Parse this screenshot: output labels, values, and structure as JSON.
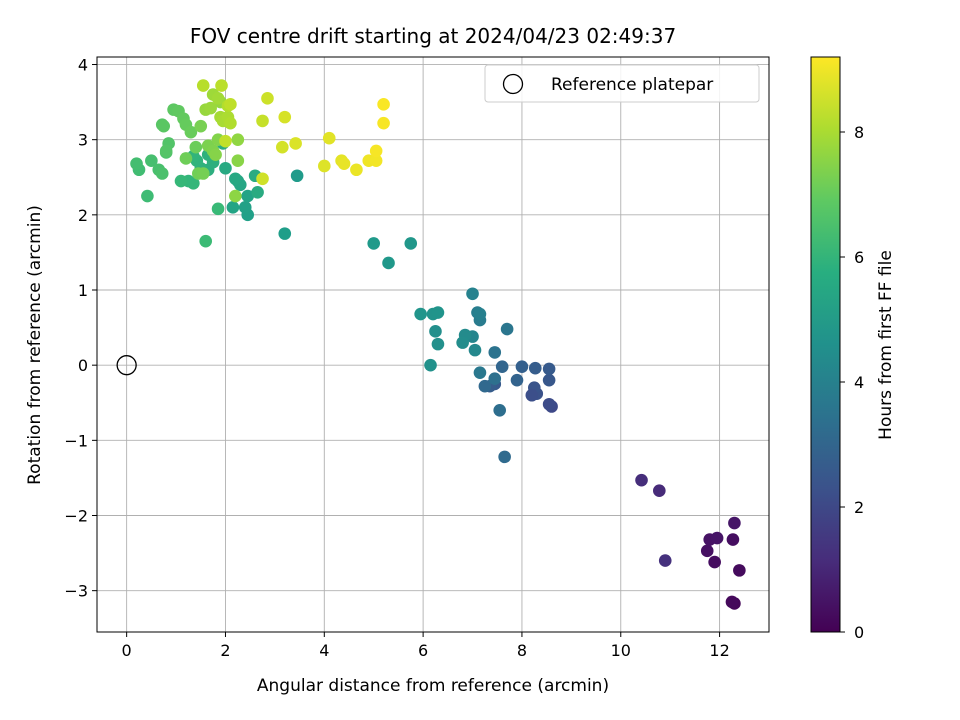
{
  "chart_data": {
    "type": "scatter",
    "title": "FOV centre drift starting at 2024/04/23 02:49:37",
    "xlabel": "Angular distance from reference (arcmin)",
    "ylabel": "Rotation from reference (arcmin)",
    "xlim": [
      -0.6,
      13.0
    ],
    "ylim": [
      -3.55,
      4.1
    ],
    "xticks": [
      0,
      2,
      4,
      6,
      8,
      10,
      12
    ],
    "yticks": [
      -3,
      -2,
      -1,
      0,
      1,
      2,
      3,
      4
    ],
    "xtick_labels": [
      "0",
      "2",
      "4",
      "6",
      "8",
      "10",
      "12"
    ],
    "ytick_labels": [
      "−3",
      "−2",
      "−1",
      "0",
      "1",
      "2",
      "3",
      "4"
    ],
    "grid": true,
    "colormap": "viridis",
    "colorbar": {
      "label": "Hours from first FF file",
      "range": [
        0,
        9.2
      ],
      "ticks": [
        0,
        2,
        4,
        6,
        8
      ],
      "tick_labels": [
        "0",
        "2",
        "4",
        "6",
        "8"
      ]
    },
    "reference": {
      "x": 0,
      "y": 0,
      "label": "Reference platepar"
    },
    "legend": {
      "location": "top-right",
      "entries": [
        "Reference platepar"
      ]
    },
    "points": [
      [
        12.3,
        -3.17,
        0.15
      ],
      [
        12.25,
        -3.15,
        0.2
      ],
      [
        12.4,
        -2.73,
        0.25
      ],
      [
        11.9,
        -2.62,
        0.3
      ],
      [
        11.75,
        -2.47,
        0.4
      ],
      [
        11.8,
        -2.32,
        0.45
      ],
      [
        11.95,
        -2.3,
        0.5
      ],
      [
        12.27,
        -2.32,
        0.35
      ],
      [
        12.3,
        -2.1,
        0.55
      ],
      [
        10.9,
        -2.6,
        1.3
      ],
      [
        10.78,
        -1.67,
        1.1
      ],
      [
        10.42,
        -1.53,
        1.2
      ],
      [
        8.6,
        -0.55,
        2.0
      ],
      [
        8.55,
        -0.52,
        2.1
      ],
      [
        8.3,
        -0.38,
        2.3
      ],
      [
        8.25,
        -0.3,
        2.4
      ],
      [
        8.2,
        -0.4,
        2.2
      ],
      [
        8.55,
        -0.2,
        2.5
      ],
      [
        8.55,
        -0.05,
        2.6
      ],
      [
        8.27,
        -0.04,
        2.7
      ],
      [
        8.0,
        -0.02,
        2.8
      ],
      [
        7.9,
        -0.2,
        2.9
      ],
      [
        7.6,
        -0.02,
        3.0
      ],
      [
        7.65,
        -1.22,
        3.2
      ],
      [
        7.55,
        -0.6,
        3.3
      ],
      [
        7.45,
        -0.25,
        2.6
      ],
      [
        7.35,
        -0.28,
        2.7
      ],
      [
        7.25,
        -0.28,
        3.1
      ],
      [
        7.45,
        -0.18,
        3.4
      ],
      [
        7.45,
        0.17,
        3.5
      ],
      [
        7.7,
        0.48,
        3.6
      ],
      [
        7.15,
        -0.1,
        3.7
      ],
      [
        7.15,
        0.6,
        3.8
      ],
      [
        7.1,
        0.7,
        3.9
      ],
      [
        7.15,
        0.68,
        4.0
      ],
      [
        7.0,
        0.95,
        4.1
      ],
      [
        7.0,
        0.38,
        4.2
      ],
      [
        7.05,
        0.2,
        4.3
      ],
      [
        6.85,
        0.4,
        4.4
      ],
      [
        6.8,
        0.3,
        4.5
      ],
      [
        6.25,
        0.45,
        4.55
      ],
      [
        6.3,
        0.28,
        4.6
      ],
      [
        6.15,
        0.0,
        4.65
      ],
      [
        6.2,
        0.68,
        4.7
      ],
      [
        6.3,
        0.7,
        4.75
      ],
      [
        5.95,
        0.68,
        4.8
      ],
      [
        5.75,
        1.62,
        4.85
      ],
      [
        5.3,
        1.36,
        4.9
      ],
      [
        5.0,
        1.62,
        4.95
      ],
      [
        3.2,
        1.75,
        5.1
      ],
      [
        3.45,
        2.52,
        5.0
      ],
      [
        2.45,
        2.0,
        5.2
      ],
      [
        2.4,
        2.1,
        5.25
      ],
      [
        2.45,
        2.25,
        5.3
      ],
      [
        2.15,
        2.1,
        5.35
      ],
      [
        2.25,
        2.45,
        5.4
      ],
      [
        2.3,
        2.4,
        5.45
      ],
      [
        2.2,
        2.48,
        5.5
      ],
      [
        2.0,
        2.62,
        5.55
      ],
      [
        2.65,
        2.3,
        5.6
      ],
      [
        2.6,
        2.52,
        5.65
      ],
      [
        1.95,
        2.95,
        5.7
      ],
      [
        1.65,
        2.6,
        5.75
      ],
      [
        1.75,
        2.7,
        5.8
      ],
      [
        1.65,
        2.8,
        5.85
      ],
      [
        1.5,
        2.62,
        5.9
      ],
      [
        1.42,
        2.72,
        5.95
      ],
      [
        1.35,
        2.78,
        6.0
      ],
      [
        1.25,
        2.45,
        6.05
      ],
      [
        1.35,
        2.42,
        6.1
      ],
      [
        1.1,
        2.45,
        6.15
      ],
      [
        1.85,
        2.08,
        6.2
      ],
      [
        1.6,
        1.65,
        6.25
      ],
      [
        0.42,
        2.25,
        6.3
      ],
      [
        0.25,
        2.6,
        6.35
      ],
      [
        0.2,
        2.68,
        6.4
      ],
      [
        0.5,
        2.72,
        6.45
      ],
      [
        0.65,
        2.6,
        6.5
      ],
      [
        0.72,
        2.55,
        6.55
      ],
      [
        0.8,
        2.83,
        6.6
      ],
      [
        0.85,
        2.95,
        6.65
      ],
      [
        0.8,
        2.85,
        6.7
      ],
      [
        0.72,
        3.2,
        6.75
      ],
      [
        0.75,
        3.18,
        6.8
      ],
      [
        0.95,
        3.4,
        6.85
      ],
      [
        1.05,
        3.38,
        6.9
      ],
      [
        1.15,
        3.28,
        6.95
      ],
      [
        1.2,
        3.2,
        7.0
      ],
      [
        1.3,
        3.1,
        7.05
      ],
      [
        1.4,
        2.9,
        7.1
      ],
      [
        1.2,
        2.75,
        7.15
      ],
      [
        1.45,
        2.55,
        7.2
      ],
      [
        1.55,
        2.55,
        7.25
      ],
      [
        1.5,
        3.18,
        7.3
      ],
      [
        1.65,
        2.92,
        7.35
      ],
      [
        1.75,
        2.85,
        7.4
      ],
      [
        1.85,
        3.0,
        7.45
      ],
      [
        1.8,
        2.8,
        7.5
      ],
      [
        2.25,
        2.72,
        7.55
      ],
      [
        2.2,
        2.25,
        7.6
      ],
      [
        2.25,
        3.0,
        7.65
      ],
      [
        1.9,
        3.5,
        7.7
      ],
      [
        1.6,
        3.4,
        7.75
      ],
      [
        1.7,
        3.42,
        7.8
      ],
      [
        1.75,
        3.6,
        7.85
      ],
      [
        1.85,
        3.55,
        7.9
      ],
      [
        1.9,
        3.3,
        7.95
      ],
      [
        1.95,
        3.25,
        8.0
      ],
      [
        2.05,
        3.3,
        8.05
      ],
      [
        2.1,
        3.22,
        8.1
      ],
      [
        2.05,
        3.45,
        8.15
      ],
      [
        1.55,
        3.72,
        8.2
      ],
      [
        1.92,
        3.72,
        8.25
      ],
      [
        2.1,
        3.47,
        8.3
      ],
      [
        2.0,
        2.98,
        8.35
      ],
      [
        2.75,
        3.25,
        8.4
      ],
      [
        2.85,
        3.55,
        8.5
      ],
      [
        2.75,
        2.48,
        8.55
      ],
      [
        3.15,
        2.9,
        8.6
      ],
      [
        3.2,
        3.3,
        8.65
      ],
      [
        3.42,
        2.95,
        8.7
      ],
      [
        4.0,
        2.65,
        8.75
      ],
      [
        4.1,
        3.02,
        8.8
      ],
      [
        4.35,
        2.72,
        8.85
      ],
      [
        4.4,
        2.68,
        8.9
      ],
      [
        4.65,
        2.6,
        8.95
      ],
      [
        4.9,
        2.72,
        9.0
      ],
      [
        5.05,
        2.72,
        9.05
      ],
      [
        5.05,
        2.85,
        9.1
      ],
      [
        5.2,
        3.22,
        9.12
      ],
      [
        5.2,
        3.47,
        9.15
      ]
    ]
  }
}
